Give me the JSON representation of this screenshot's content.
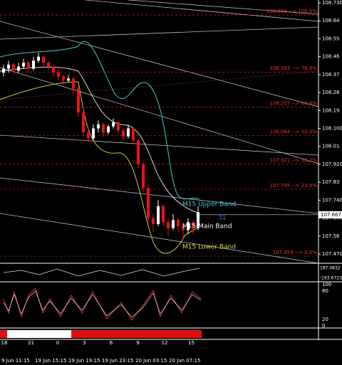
{
  "chart_data": {
    "type": "candlestick",
    "ylim": [
      107.47,
      108.73
    ],
    "yticks": [
      {
        "value": 108.73,
        "label": "108.730"
      },
      108.64,
      108.55,
      108.46,
      108.37,
      108.28,
      108.19,
      {
        "value": 108.1,
        "label": "108.100"
      },
      108.01,
      {
        "value": 107.92,
        "label": "107.920"
      },
      107.83,
      {
        "value": 107.74,
        "label": "107.740"
      },
      {
        "value": 107.65,
        "label": "107.650"
      },
      107.56,
      {
        "value": 107.47,
        "label": "107.470"
      }
    ],
    "current_price": 107.667,
    "levels": [
      {
        "value": 108.669,
        "label": "108.669 --> 100.0%"
      },
      {
        "value": 108.383,
        "label": "108.383 --> 76.4%"
      },
      {
        "value": 108.207,
        "label": "108.207 --> 61.8%"
      },
      {
        "value": 108.064,
        "label": "108.064 --> 50.0%"
      },
      {
        "value": 107.921,
        "label": "107.921 --> 38.2%"
      },
      {
        "value": 107.795,
        "label": "107.795 --> 23.6%"
      },
      {
        "value": 107.459,
        "label": "107.459 --> 0.0%"
      }
    ],
    "band_labels": [
      "M15 Upper Band",
      "M15 Main Band",
      "M15 Lower Band"
    ],
    "marker": "31",
    "ohlc": [
      [
        108.38,
        108.42,
        108.36,
        108.4
      ],
      [
        108.4,
        108.44,
        108.38,
        108.42
      ],
      [
        108.42,
        108.43,
        108.37,
        108.39
      ],
      [
        108.39,
        108.43,
        108.38,
        108.41
      ],
      [
        108.41,
        108.45,
        108.4,
        108.43
      ],
      [
        108.43,
        108.44,
        108.38,
        108.4
      ],
      [
        108.4,
        108.46,
        108.39,
        108.44
      ],
      [
        108.44,
        108.48,
        108.43,
        108.46
      ],
      [
        108.46,
        108.47,
        108.41,
        108.43
      ],
      [
        108.43,
        108.44,
        108.39,
        108.41
      ],
      [
        108.41,
        108.42,
        108.36,
        108.38
      ],
      [
        108.38,
        108.4,
        108.34,
        108.36
      ],
      [
        108.36,
        108.37,
        108.32,
        108.34
      ],
      [
        108.34,
        108.37,
        108.33,
        108.35
      ],
      [
        108.35,
        108.36,
        108.28,
        108.3
      ],
      [
        108.3,
        108.31,
        108.16,
        108.18
      ],
      [
        108.18,
        108.2,
        108.06,
        108.08
      ],
      [
        108.08,
        108.1,
        108.03,
        108.05
      ],
      [
        108.05,
        108.12,
        108.04,
        108.1
      ],
      [
        108.1,
        108.14,
        108.08,
        108.12
      ],
      [
        108.12,
        108.13,
        108.06,
        108.08
      ],
      [
        108.08,
        108.12,
        108.07,
        108.11
      ],
      [
        108.11,
        108.15,
        108.1,
        108.13
      ],
      [
        108.13,
        108.14,
        108.07,
        108.09
      ],
      [
        108.09,
        108.1,
        108.04,
        108.06
      ],
      [
        108.06,
        108.12,
        108.05,
        108.1
      ],
      [
        108.1,
        108.11,
        108.02,
        108.04
      ],
      [
        108.04,
        108.05,
        107.9,
        107.92
      ],
      [
        107.92,
        107.93,
        107.78,
        107.8
      ],
      [
        107.8,
        107.82,
        107.63,
        107.65
      ],
      [
        107.65,
        107.67,
        107.58,
        107.62
      ],
      [
        107.62,
        107.74,
        107.61,
        107.71
      ],
      [
        107.71,
        107.72,
        107.61,
        107.63
      ],
      [
        107.63,
        107.65,
        107.56,
        107.6
      ],
      [
        107.6,
        107.67,
        107.59,
        107.64
      ],
      [
        107.64,
        107.65,
        107.58,
        107.61
      ],
      [
        107.61,
        107.62,
        107.54,
        107.59
      ],
      [
        107.59,
        107.65,
        107.57,
        107.63
      ],
      [
        107.63,
        107.64,
        107.57,
        107.6
      ],
      [
        107.6,
        107.71,
        107.59,
        107.68
      ]
    ],
    "hour_labels": [
      "18",
      "21",
      "0",
      "3",
      "6",
      "9",
      "12",
      "15"
    ],
    "date_labels": [
      "9 Jun 11:15",
      "19 Jun 15:15",
      "19 Jun 19:15",
      "19 Jun 23:15",
      "20 Jun 03:15",
      "20 Jun 07:15"
    ],
    "cci_labels": [
      "187.0832",
      "-193.6723"
    ],
    "stoch_labels": [
      "100",
      "80",
      "20",
      "0"
    ]
  }
}
